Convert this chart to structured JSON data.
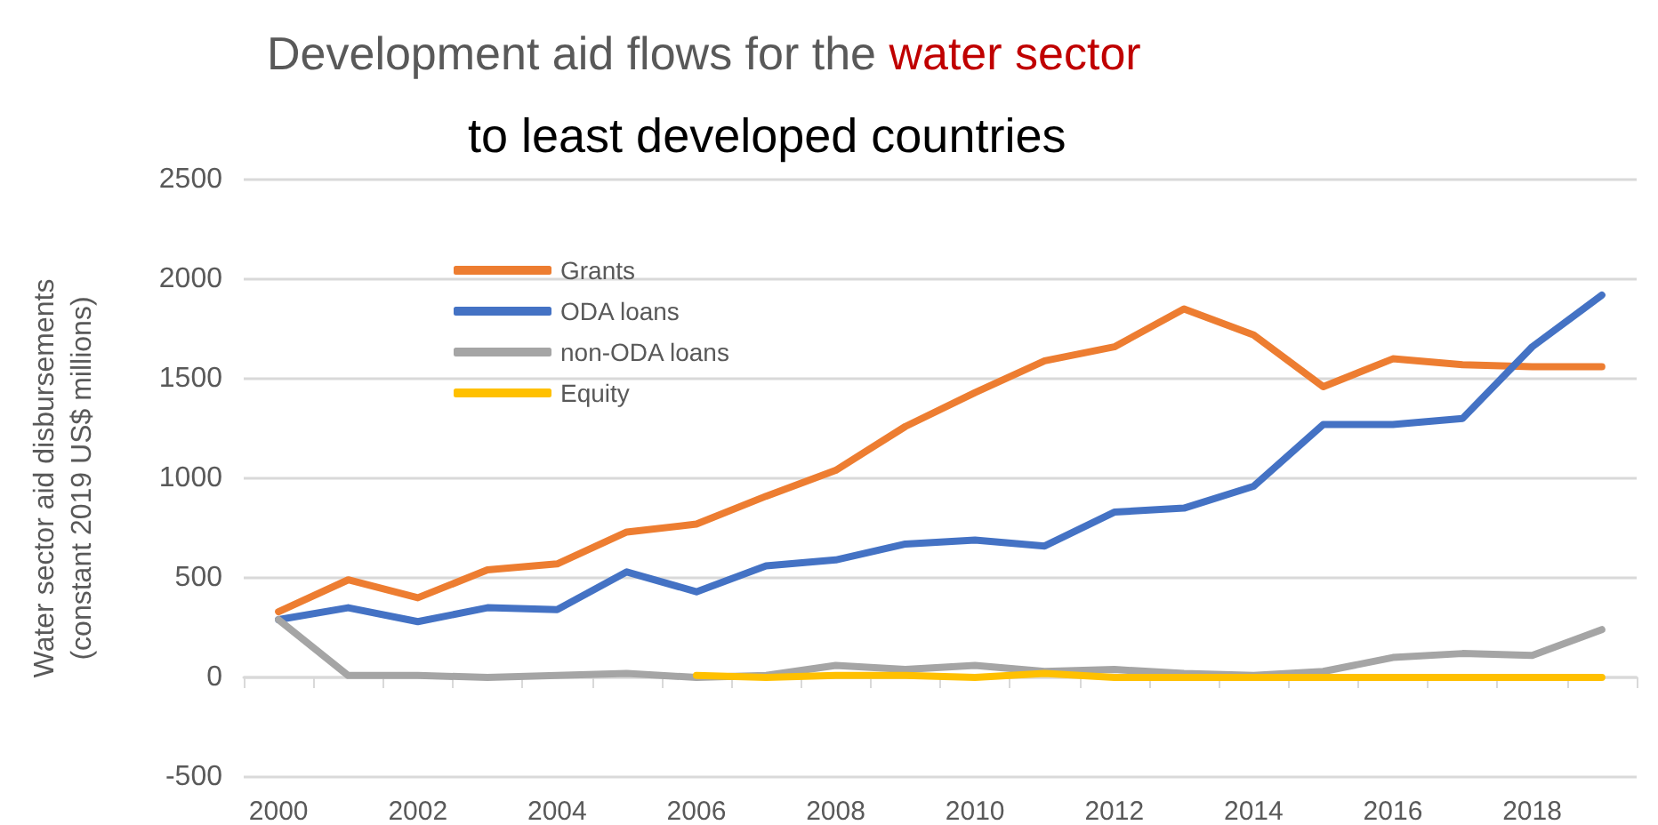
{
  "chart_data": {
    "type": "line",
    "title": "Development aid flows for the water sector",
    "subtitle": "to least developed countries",
    "ylabel": "Water sector aid disbursements\n(constant 2019 US$ millions)",
    "categories": [
      "2000",
      null,
      "2002",
      null,
      "2004",
      null,
      "2006",
      null,
      "2008",
      null,
      "2010",
      null,
      "2012",
      null,
      "2014",
      null,
      "2016",
      null,
      "2018",
      null
    ],
    "series": [
      {
        "name": "Grants",
        "color": "#ed7d31",
        "values": [
          330,
          490,
          400,
          540,
          570,
          730,
          770,
          910,
          1040,
          1260,
          1430,
          1590,
          1660,
          1850,
          1720,
          1460,
          1600,
          1570,
          1560,
          1560
        ]
      },
      {
        "name": "ODA loans",
        "color": "#4472c4",
        "values": [
          290,
          350,
          280,
          350,
          340,
          530,
          430,
          560,
          590,
          670,
          690,
          660,
          830,
          850,
          960,
          1270,
          1270,
          1300,
          1660,
          1920
        ]
      },
      {
        "name": "non-ODA loans",
        "color": "#a5a5a5",
        "values": [
          290,
          10,
          10,
          0,
          10,
          20,
          0,
          10,
          60,
          40,
          60,
          30,
          40,
          20,
          10,
          30,
          100,
          120,
          110,
          240
        ]
      },
      {
        "name": "Equity",
        "color": "#ffc000",
        "values": [
          null,
          null,
          null,
          null,
          null,
          null,
          10,
          0,
          10,
          10,
          0,
          20,
          0,
          0,
          0,
          0,
          0,
          0,
          0,
          0
        ]
      }
    ],
    "ylim": [
      -500,
      2500
    ],
    "yticks": [
      -500,
      0,
      500,
      {
        "value": 1000,
        "label": "1000"
      },
      {
        "value": 1500,
        "label": "1500"
      },
      {
        "value": 2000,
        "label": "2000"
      },
      {
        "value": 2500,
        "label": "2500"
      }
    ],
    "grid": "y",
    "legend": "top left",
    "marker": "none",
    "line_style": "solid"
  }
}
